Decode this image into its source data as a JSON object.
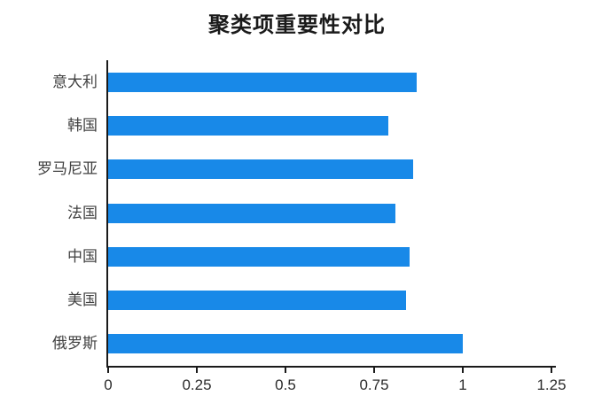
{
  "chart_data": {
    "type": "bar",
    "orientation": "horizontal",
    "title": "聚类项重要性对比",
    "categories": [
      "意大利",
      "韩国",
      "罗马尼亚",
      "法国",
      "中国",
      "美国",
      "俄罗斯"
    ],
    "values": [
      0.87,
      0.79,
      0.86,
      0.81,
      0.85,
      0.84,
      1.0
    ],
    "xlabel": "",
    "ylabel": "",
    "xlim": [
      0,
      1.25
    ],
    "xticks": [
      0,
      0.25,
      0.5,
      0.75,
      1,
      1.25
    ],
    "xtick_labels": [
      "0",
      "0.25",
      "0.5",
      "0.75",
      "1",
      "1.25"
    ],
    "grid": false,
    "legend_position": "none",
    "bar_color": "#1889E8",
    "axis_color": "#1a1a1a",
    "background_color": "#ffffff"
  }
}
